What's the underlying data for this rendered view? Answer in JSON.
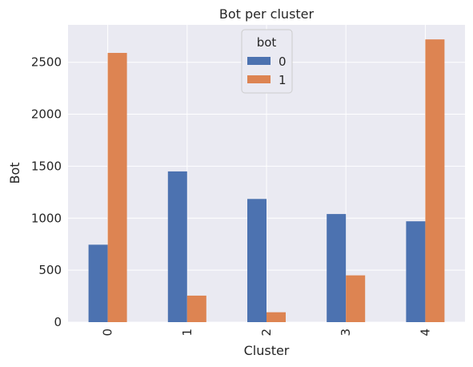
{
  "chart_data": {
    "type": "bar",
    "title": "Bot per cluster",
    "xlabel": "Cluster",
    "ylabel": "Bot",
    "categories": [
      "0",
      "1",
      "2",
      "3",
      "4"
    ],
    "series": [
      {
        "name": "0",
        "color": "#4c72b0",
        "values": [
          745,
          1450,
          1185,
          1040,
          970
        ]
      },
      {
        "name": "1",
        "color": "#dd8452",
        "values": [
          2590,
          255,
          95,
          450,
          2720
        ]
      }
    ],
    "ylim": [
      0,
      2860
    ],
    "yticks": [
      0,
      500,
      1000,
      1500,
      2000,
      2500
    ],
    "grid": true,
    "legend": {
      "title": "bot",
      "placement": "upper center"
    }
  }
}
